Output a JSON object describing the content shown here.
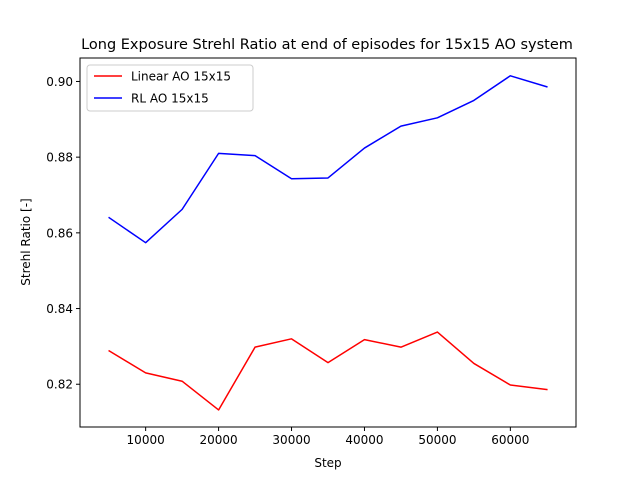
{
  "chart_data": {
    "type": "line",
    "title": "Long Exposure Strehl Ratio at end of episodes for 15x15 AO system",
    "xlabel": "Step",
    "ylabel": "Strehl Ratio [-]",
    "xlim": [
      1000,
      69000
    ],
    "ylim": [
      0.8087,
      0.9062
    ],
    "xticks": [
      10000,
      20000,
      30000,
      40000,
      50000,
      60000
    ],
    "xtick_labels": [
      "10000",
      "20000",
      "30000",
      "40000",
      "50000",
      "60000"
    ],
    "yticks": [
      0.82,
      0.84,
      0.86,
      0.88,
      0.9
    ],
    "ytick_labels": [
      "0.82",
      "0.84",
      "0.86",
      "0.88",
      "0.90"
    ],
    "grid": false,
    "legend": "top-left",
    "x": [
      5000,
      10000,
      15000,
      20000,
      25000,
      30000,
      35000,
      40000,
      45000,
      50000,
      55000,
      60000,
      65000
    ],
    "series": [
      {
        "name": "Linear AO 15x15",
        "color": "#ff0000",
        "values": [
          0.8288,
          0.823,
          0.8208,
          0.8132,
          0.8298,
          0.832,
          0.8257,
          0.8318,
          0.8298,
          0.8338,
          0.8255,
          0.8198,
          0.8186
        ]
      },
      {
        "name": "RL AO 15x15",
        "color": "#0000ff",
        "values": [
          0.864,
          0.8574,
          0.8662,
          0.881,
          0.8804,
          0.8743,
          0.8745,
          0.8824,
          0.8882,
          0.8904,
          0.895,
          0.9015,
          0.8986
        ]
      }
    ]
  }
}
